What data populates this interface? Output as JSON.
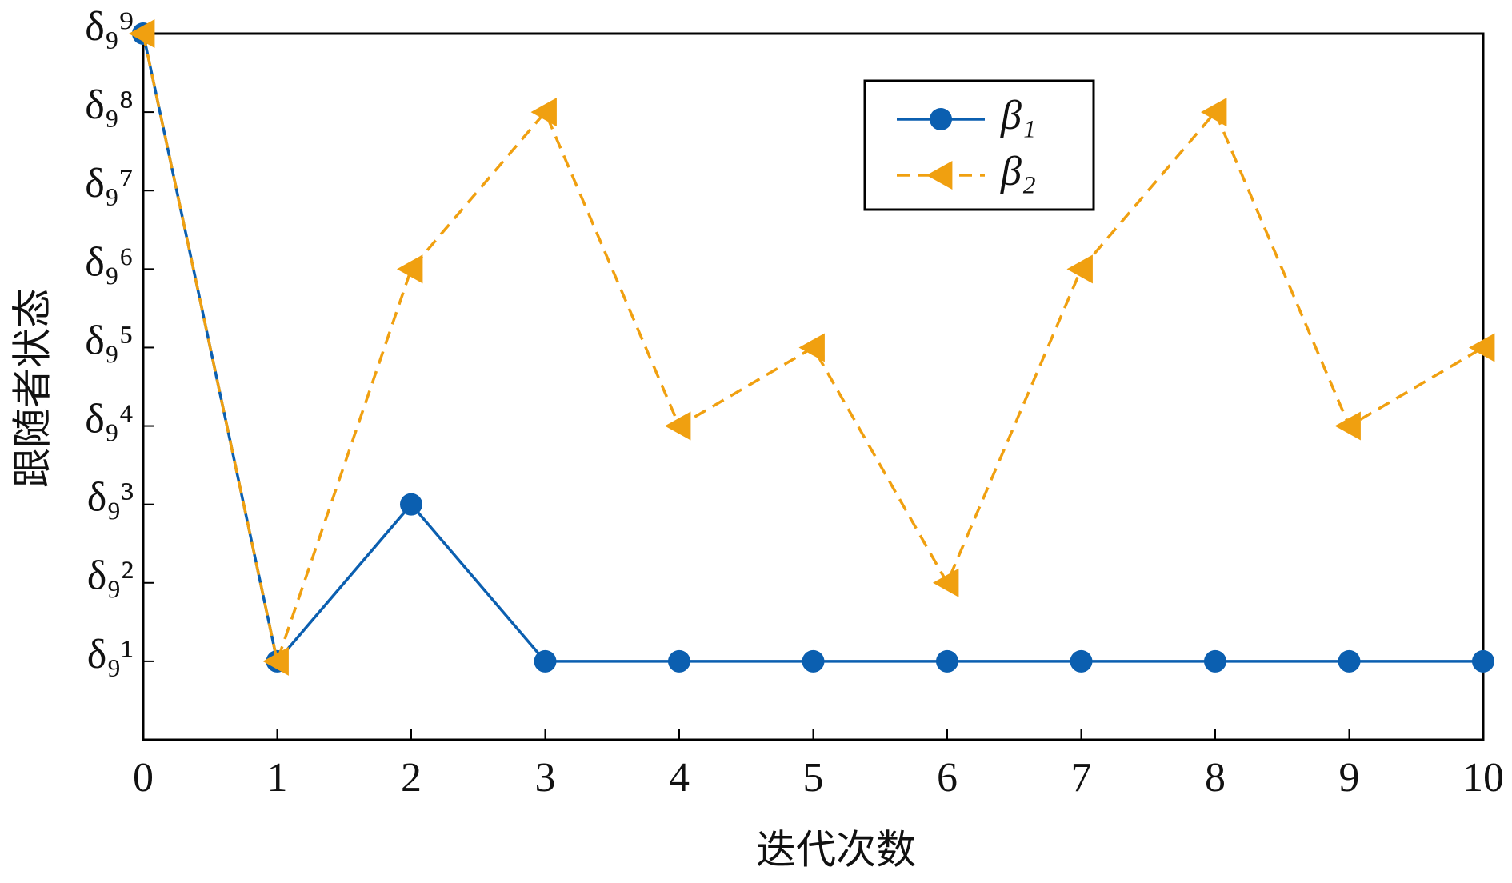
{
  "chart_data": {
    "type": "line",
    "x": [
      0,
      1,
      2,
      3,
      4,
      5,
      6,
      7,
      8,
      9,
      10
    ],
    "xlabel": "迭代次数",
    "ylabel": "跟随者状态",
    "xlim": [
      0,
      10
    ],
    "xticks": [
      0,
      1,
      2,
      3,
      4,
      5,
      6,
      7,
      8,
      9,
      10
    ],
    "ylim": [
      0,
      9
    ],
    "yticks": [
      {
        "value": 1,
        "label": "δ₉¹"
      },
      {
        "value": 2,
        "label": "δ₉²"
      },
      {
        "value": 3,
        "label": "δ₉³"
      },
      {
        "value": 4,
        "label": "δ₉⁴"
      },
      {
        "value": 5,
        "label": "δ₉⁵"
      },
      {
        "value": 6,
        "label": "δ₉⁶"
      },
      {
        "value": 7,
        "label": "δ₉⁷"
      },
      {
        "value": 8,
        "label": "δ₉⁸"
      },
      {
        "value": 9,
        "label": "δ₉⁹"
      }
    ],
    "series": [
      {
        "name": "β₁",
        "color": "#0b5fb0",
        "marker": "circle",
        "dash": false,
        "values": [
          9,
          1,
          3,
          1,
          1,
          1,
          1,
          1,
          1,
          1,
          1
        ]
      },
      {
        "name": "β₂",
        "color": "#f0a010",
        "marker": "triangle-left",
        "dash": true,
        "values": [
          9,
          1,
          6,
          8,
          4,
          5,
          2,
          6,
          8,
          4,
          5
        ]
      }
    ]
  }
}
